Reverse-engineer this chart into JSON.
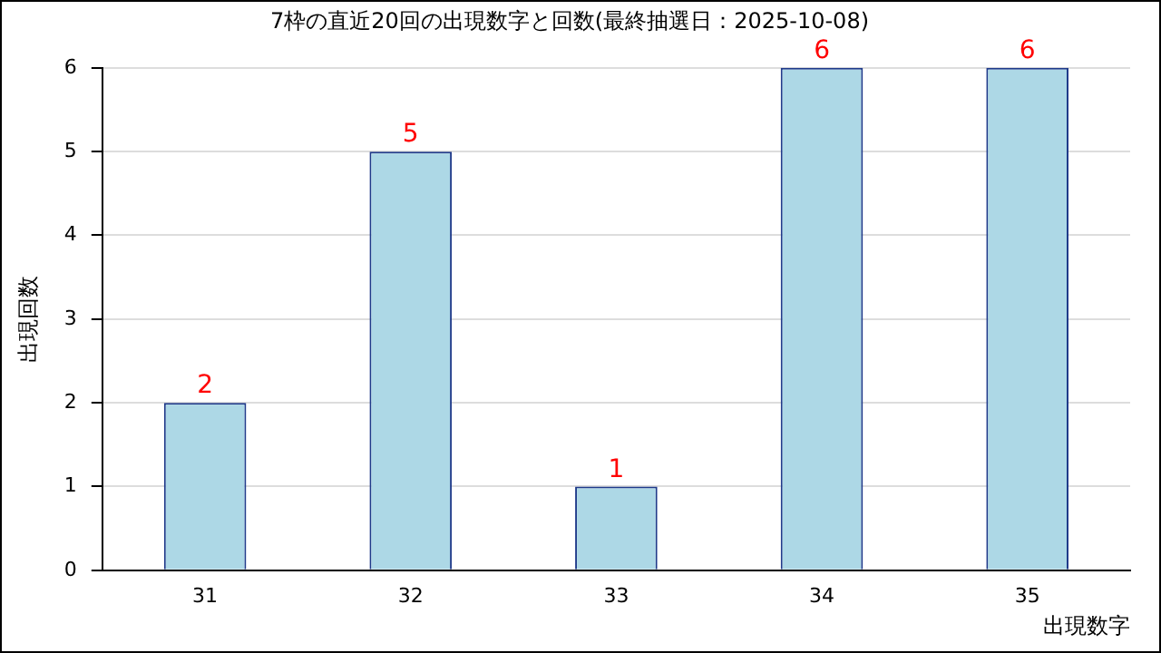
{
  "chart_data": {
    "type": "bar",
    "title": "7枠の直近20回の出現数字と回数(最終抽選日：2025-10-08)",
    "xlabel": "出現数字",
    "ylabel": "出現回数",
    "categories": [
      "31",
      "32",
      "33",
      "34",
      "35"
    ],
    "values": [
      2,
      5,
      1,
      6,
      6
    ],
    "color": "#add8e6",
    "ylim": [
      0,
      6
    ],
    "yticks": [
      0,
      1,
      2,
      3,
      4,
      5,
      6
    ],
    "grid": "y",
    "data_labels": true,
    "legend": false
  }
}
